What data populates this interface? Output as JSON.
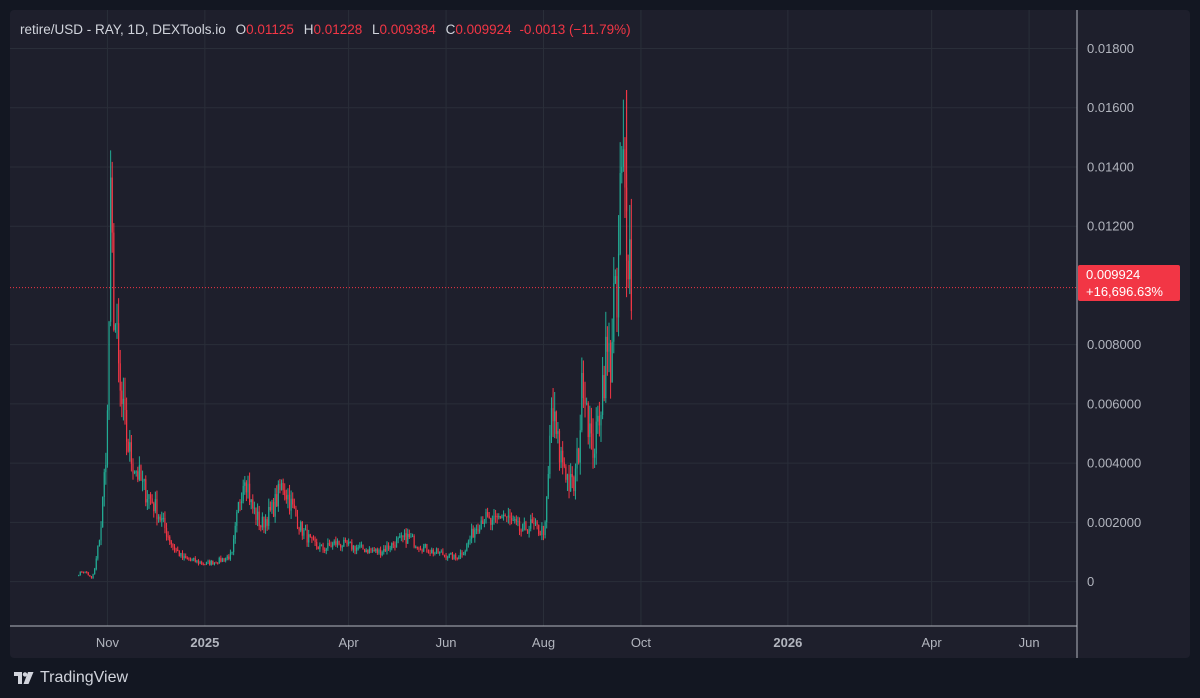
{
  "legend": {
    "symbol": "retire/USD - RAY, 1D, DEXTools.io",
    "o_label": "O",
    "o_value": "0.01125",
    "h_label": "H",
    "h_value": "0.01228",
    "l_label": "L",
    "l_value": "0.009384",
    "c_label": "C",
    "c_value": "0.009924",
    "change": "-0.0013 (−11.79%)"
  },
  "price_tag": {
    "price": "0.009924",
    "percent": "+16,696.63%"
  },
  "footer": {
    "brand": "TradingView"
  },
  "colors": {
    "up": "#22ab94",
    "down": "#f23645",
    "background": "#1e1f2c",
    "grid": "#2a2e39",
    "text": "#b2b5be"
  },
  "chart_data": {
    "type": "candlestick",
    "y_ticks": [
      "0.01800",
      "0.01600",
      "0.01400",
      "0.01200",
      "0.008000",
      "0.006000",
      "0.004000",
      "0.002000",
      "0"
    ],
    "y_tick_values": [
      0.018,
      0.016,
      0.014,
      0.012,
      0.008,
      0.006,
      0.004,
      0.002,
      0
    ],
    "ylim": [
      -0.0015,
      0.0193
    ],
    "x_ticks": [
      {
        "label": "Nov",
        "date": "2024-11-01",
        "bold": false
      },
      {
        "label": "2025",
        "date": "2025-01-01",
        "bold": true
      },
      {
        "label": "Apr",
        "date": "2025-04-01",
        "bold": false
      },
      {
        "label": "Jun",
        "date": "2025-06-01",
        "bold": false
      },
      {
        "label": "Aug",
        "date": "2025-08-01",
        "bold": false
      },
      {
        "label": "Oct",
        "date": "2025-10-01",
        "bold": false
      },
      {
        "label": "2026",
        "date": "2026-01-01",
        "bold": true
      },
      {
        "label": "Apr",
        "date": "2026-04-01",
        "bold": false
      },
      {
        "label": "Jun",
        "date": "2026-06-01",
        "bold": false
      }
    ],
    "xlim": [
      "2024-09-01",
      "2026-07-01"
    ],
    "last_price": 0.009924,
    "close_series": [
      [
        "2024-10-14",
        0.00025
      ],
      [
        "2024-10-16",
        0.00035
      ],
      [
        "2024-10-19",
        0.0003
      ],
      [
        "2024-10-22",
        0.0001
      ],
      [
        "2024-10-24",
        0.0004
      ],
      [
        "2024-10-26",
        0.0011
      ],
      [
        "2024-10-28",
        0.0019
      ],
      [
        "2024-10-30",
        0.0035
      ],
      [
        "2024-11-01",
        0.0055
      ],
      [
        "2024-11-03",
        0.0122
      ],
      [
        "2024-11-05",
        0.0095
      ],
      [
        "2024-11-07",
        0.0078
      ],
      [
        "2024-11-09",
        0.0062
      ],
      [
        "2024-11-12",
        0.0052
      ],
      [
        "2024-11-15",
        0.0043
      ],
      [
        "2024-11-19",
        0.0038
      ],
      [
        "2024-11-23",
        0.0032
      ],
      [
        "2024-11-27",
        0.0029
      ],
      [
        "2024-12-02",
        0.0024
      ],
      [
        "2024-12-07",
        0.0018
      ],
      [
        "2024-12-12",
        0.0012
      ],
      [
        "2024-12-18",
        0.0008
      ],
      [
        "2024-12-25",
        0.0007
      ],
      [
        "2025-01-01",
        0.0006
      ],
      [
        "2025-01-10",
        0.0007
      ],
      [
        "2025-01-18",
        0.0009
      ],
      [
        "2025-01-22",
        0.0025
      ],
      [
        "2025-01-26",
        0.0038
      ],
      [
        "2025-01-30",
        0.0026
      ],
      [
        "2025-02-05",
        0.0019
      ],
      [
        "2025-02-12",
        0.0024
      ],
      [
        "2025-02-19",
        0.0033
      ],
      [
        "2025-02-24",
        0.0026
      ],
      [
        "2025-03-02",
        0.0018
      ],
      [
        "2025-03-09",
        0.0013
      ],
      [
        "2025-03-16",
        0.0011
      ],
      [
        "2025-03-24",
        0.0013
      ],
      [
        "2025-04-01",
        0.0012
      ],
      [
        "2025-04-10",
        0.0011
      ],
      [
        "2025-04-20",
        0.001
      ],
      [
        "2025-04-30",
        0.0013
      ],
      [
        "2025-05-08",
        0.0015
      ],
      [
        "2025-05-16",
        0.0012
      ],
      [
        "2025-05-24",
        0.001
      ],
      [
        "2025-06-01",
        0.0009
      ],
      [
        "2025-06-07",
        0.0008
      ],
      [
        "2025-06-13",
        0.0011
      ],
      [
        "2025-06-19",
        0.0018
      ],
      [
        "2025-06-24",
        0.0022
      ],
      [
        "2025-06-30",
        0.0019
      ],
      [
        "2025-07-06",
        0.0023
      ],
      [
        "2025-07-12",
        0.002
      ],
      [
        "2025-07-18",
        0.0017
      ],
      [
        "2025-07-24",
        0.0019
      ],
      [
        "2025-07-30",
        0.0017
      ],
      [
        "2025-08-02",
        0.0018
      ],
      [
        "2025-08-04",
        0.0035
      ],
      [
        "2025-08-06",
        0.0058
      ],
      [
        "2025-08-08",
        0.0052
      ],
      [
        "2025-08-11",
        0.0043
      ],
      [
        "2025-08-14",
        0.004
      ],
      [
        "2025-08-17",
        0.0033
      ],
      [
        "2025-08-20",
        0.0032
      ],
      [
        "2025-08-23",
        0.0045
      ],
      [
        "2025-08-26",
        0.0072
      ],
      [
        "2025-08-28",
        0.0062
      ],
      [
        "2025-08-31",
        0.0045
      ],
      [
        "2025-09-03",
        0.0048
      ],
      [
        "2025-09-06",
        0.0063
      ],
      [
        "2025-09-09",
        0.0076
      ],
      [
        "2025-09-12",
        0.0075
      ],
      [
        "2025-09-14",
        0.0095
      ],
      [
        "2025-09-16",
        0.0088
      ],
      [
        "2025-09-18",
        0.0128
      ],
      [
        "2025-09-20",
        0.0137
      ],
      [
        "2025-09-22",
        0.0122
      ],
      [
        "2025-09-24",
        0.0112
      ],
      [
        "2025-09-25",
        0.0099
      ]
    ]
  }
}
